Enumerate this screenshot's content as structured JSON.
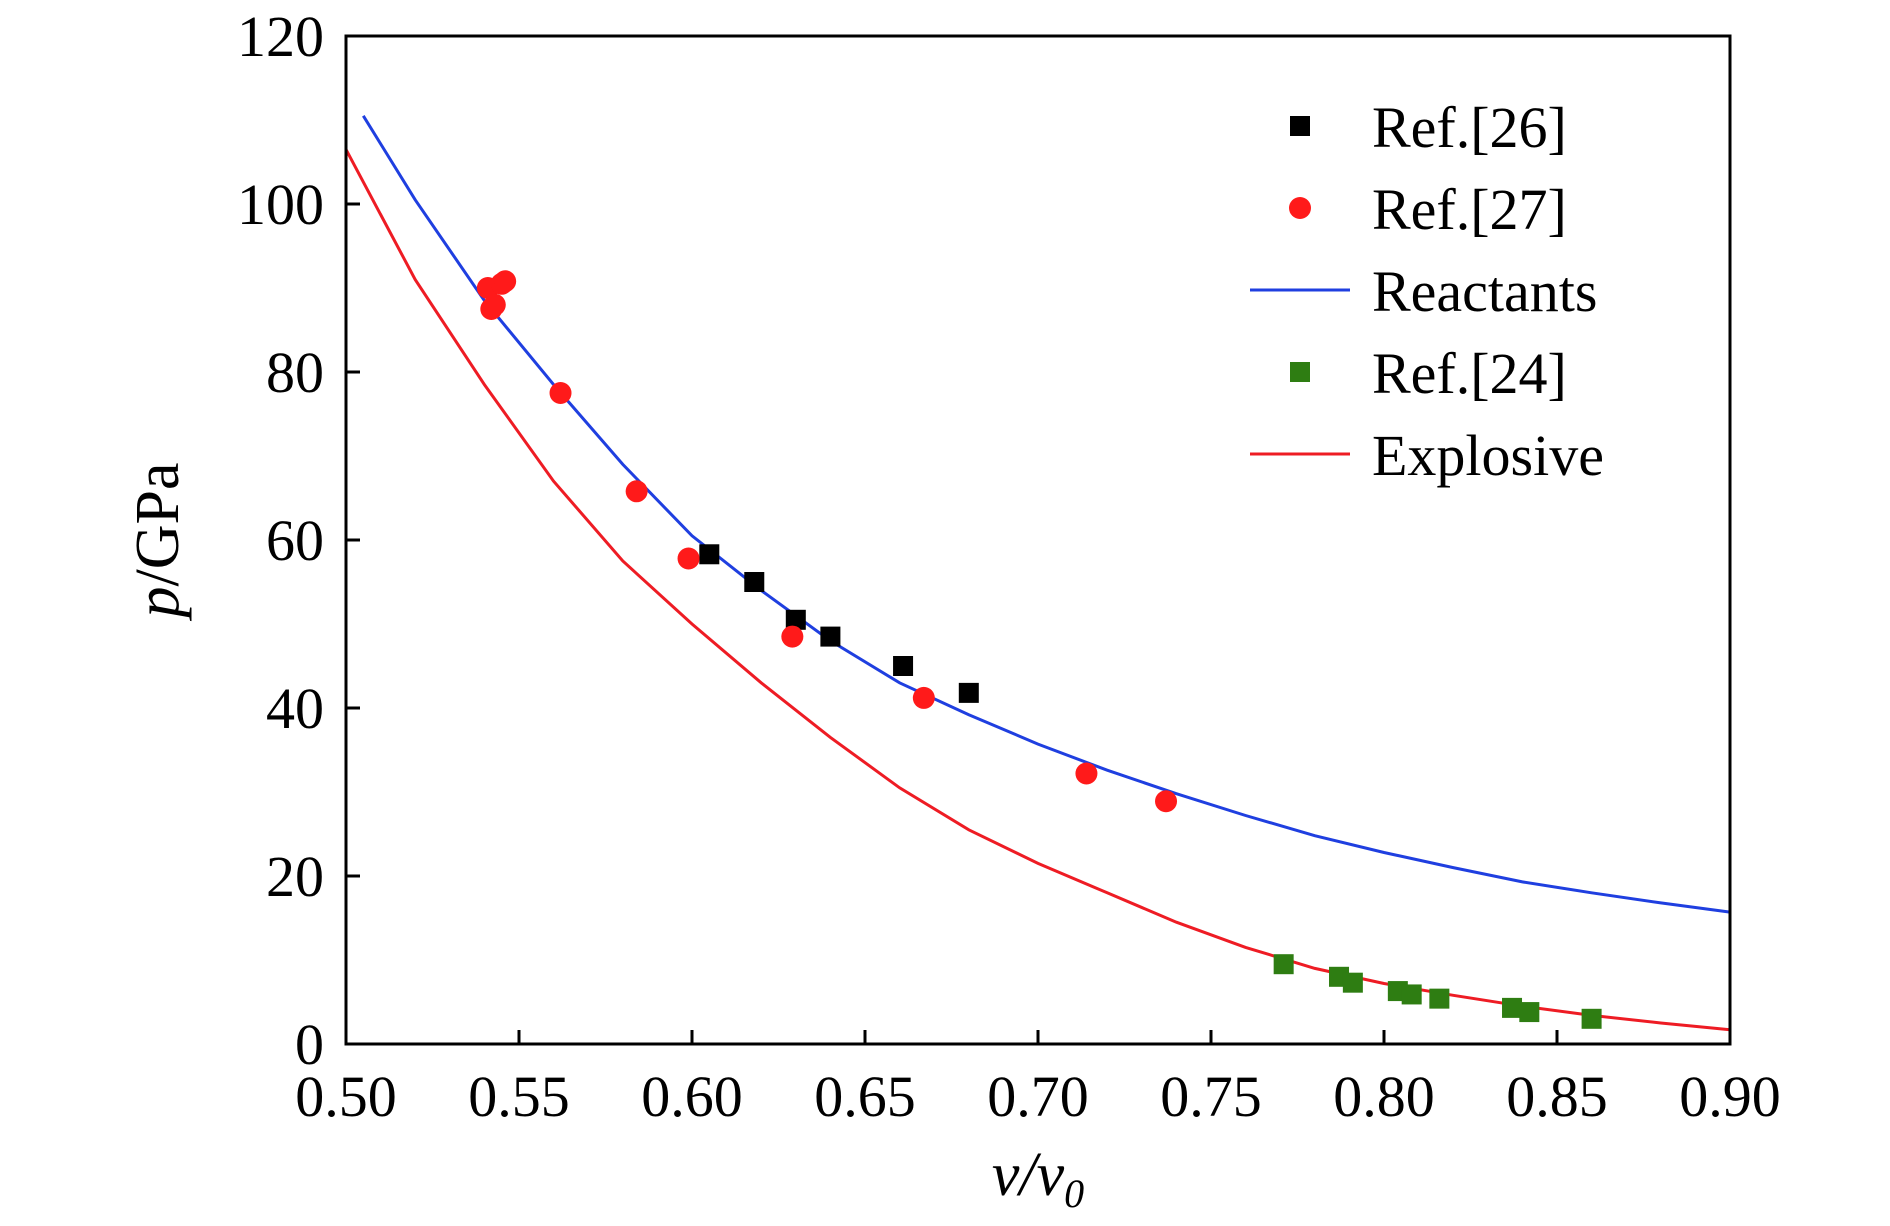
{
  "chart_data": {
    "type": "scatter",
    "title": "",
    "xlabel": {
      "main": "v/v",
      "sub": "0"
    },
    "ylabel": {
      "italic": "p",
      "rest": "/GPa"
    },
    "xlim": [
      0.5,
      0.9
    ],
    "ylim": [
      0,
      120
    ],
    "xticks": [
      "0.50",
      "0.55",
      "0.60",
      "0.65",
      "0.70",
      "0.75",
      "0.80",
      "0.85",
      "0.90"
    ],
    "yticks": [
      "0",
      "20",
      "40",
      "60",
      "80",
      "100",
      "120"
    ],
    "grid": false,
    "legend_position": "top-right",
    "series": [
      {
        "name": "Ref.[26]",
        "kind": "points",
        "marker": "square",
        "color": "#000000",
        "points": [
          [
            0.605,
            58.3
          ],
          [
            0.618,
            55.0
          ],
          [
            0.63,
            50.5
          ],
          [
            0.64,
            48.5
          ],
          [
            0.661,
            45.0
          ],
          [
            0.68,
            41.8
          ]
        ]
      },
      {
        "name": "Ref.[27]",
        "kind": "points",
        "marker": "circle",
        "color": "#ff1a1a",
        "points": [
          [
            0.541,
            90.0
          ],
          [
            0.542,
            87.5
          ],
          [
            0.543,
            88.0
          ],
          [
            0.545,
            90.5
          ],
          [
            0.546,
            90.8
          ],
          [
            0.562,
            77.5
          ],
          [
            0.584,
            65.8
          ],
          [
            0.599,
            57.8
          ],
          [
            0.629,
            48.5
          ],
          [
            0.667,
            41.2
          ],
          [
            0.714,
            32.2
          ],
          [
            0.737,
            28.9
          ]
        ]
      },
      {
        "name": "Reactants",
        "kind": "line",
        "color": "#1f3fe0",
        "points": [
          [
            0.505,
            110.5
          ],
          [
            0.52,
            100.5
          ],
          [
            0.54,
            88.5
          ],
          [
            0.56,
            78.5
          ],
          [
            0.58,
            69.0
          ],
          [
            0.6,
            60.5
          ],
          [
            0.62,
            54.0
          ],
          [
            0.64,
            48.0
          ],
          [
            0.66,
            43.0
          ],
          [
            0.68,
            39.2
          ],
          [
            0.7,
            35.7
          ],
          [
            0.72,
            32.6
          ],
          [
            0.74,
            29.8
          ],
          [
            0.76,
            27.2
          ],
          [
            0.78,
            24.8
          ],
          [
            0.8,
            22.8
          ],
          [
            0.82,
            21.0
          ],
          [
            0.84,
            19.3
          ],
          [
            0.86,
            18.0
          ],
          [
            0.88,
            16.8
          ],
          [
            0.9,
            15.7
          ]
        ]
      },
      {
        "name": "Ref.[24]",
        "kind": "points",
        "marker": "square",
        "color": "#2e7d12",
        "points": [
          [
            0.771,
            9.5
          ],
          [
            0.787,
            8.0
          ],
          [
            0.791,
            7.3
          ],
          [
            0.804,
            6.3
          ],
          [
            0.808,
            5.9
          ],
          [
            0.816,
            5.4
          ],
          [
            0.837,
            4.3
          ],
          [
            0.842,
            3.8
          ],
          [
            0.86,
            3.0
          ]
        ]
      },
      {
        "name": "Explosive",
        "kind": "line",
        "color": "#ee1c24",
        "points": [
          [
            0.5,
            106.5
          ],
          [
            0.52,
            91.0
          ],
          [
            0.54,
            78.5
          ],
          [
            0.56,
            67.0
          ],
          [
            0.58,
            57.5
          ],
          [
            0.6,
            50.0
          ],
          [
            0.62,
            43.0
          ],
          [
            0.64,
            36.5
          ],
          [
            0.66,
            30.5
          ],
          [
            0.68,
            25.5
          ],
          [
            0.7,
            21.5
          ],
          [
            0.72,
            18.0
          ],
          [
            0.74,
            14.5
          ],
          [
            0.76,
            11.5
          ],
          [
            0.78,
            9.0
          ],
          [
            0.8,
            7.2
          ],
          [
            0.82,
            5.8
          ],
          [
            0.84,
            4.5
          ],
          [
            0.86,
            3.4
          ],
          [
            0.88,
            2.5
          ],
          [
            0.9,
            1.7
          ]
        ]
      }
    ]
  }
}
